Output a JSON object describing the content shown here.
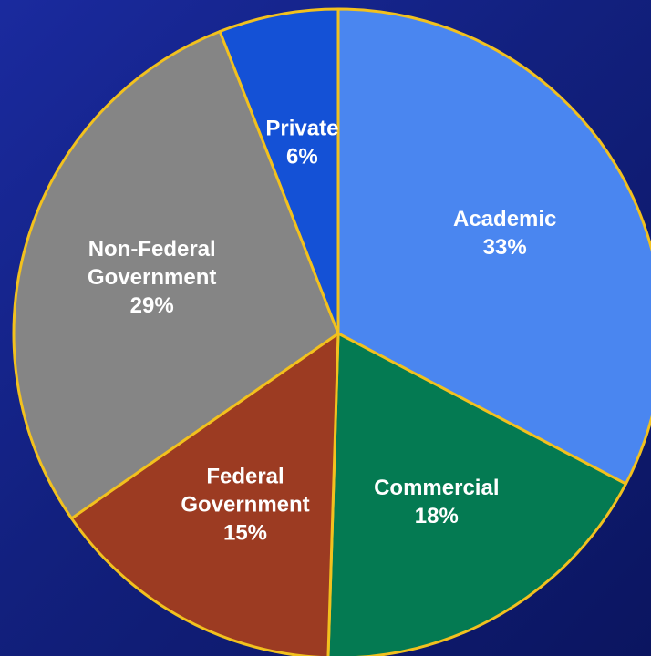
{
  "chart_data": {
    "type": "pie",
    "title": "",
    "start_angle_deg": 0,
    "direction": "clockwise",
    "slices": [
      {
        "category": "Academic",
        "label_lines": [
          "Academic",
          "33%"
        ],
        "value": 33,
        "color": "#4a86f0"
      },
      {
        "category": "Commercial",
        "label_lines": [
          "Commercial",
          "18%"
        ],
        "value": 18,
        "color": "#047a52"
      },
      {
        "category": "Federal Government",
        "label_lines": [
          "Federal",
          "Government",
          "15%"
        ],
        "value": 15,
        "color": "#9c3b22"
      },
      {
        "category": "Non-Federal Government",
        "label_lines": [
          "Non-Federal",
          "Government",
          "29%"
        ],
        "value": 29,
        "color": "#858585"
      },
      {
        "category": "Private",
        "label_lines": [
          "Private",
          "6%"
        ],
        "value": 6,
        "color": "#1451d6"
      }
    ],
    "outline_color": "#f2c11e",
    "background_color": "#14218a"
  }
}
